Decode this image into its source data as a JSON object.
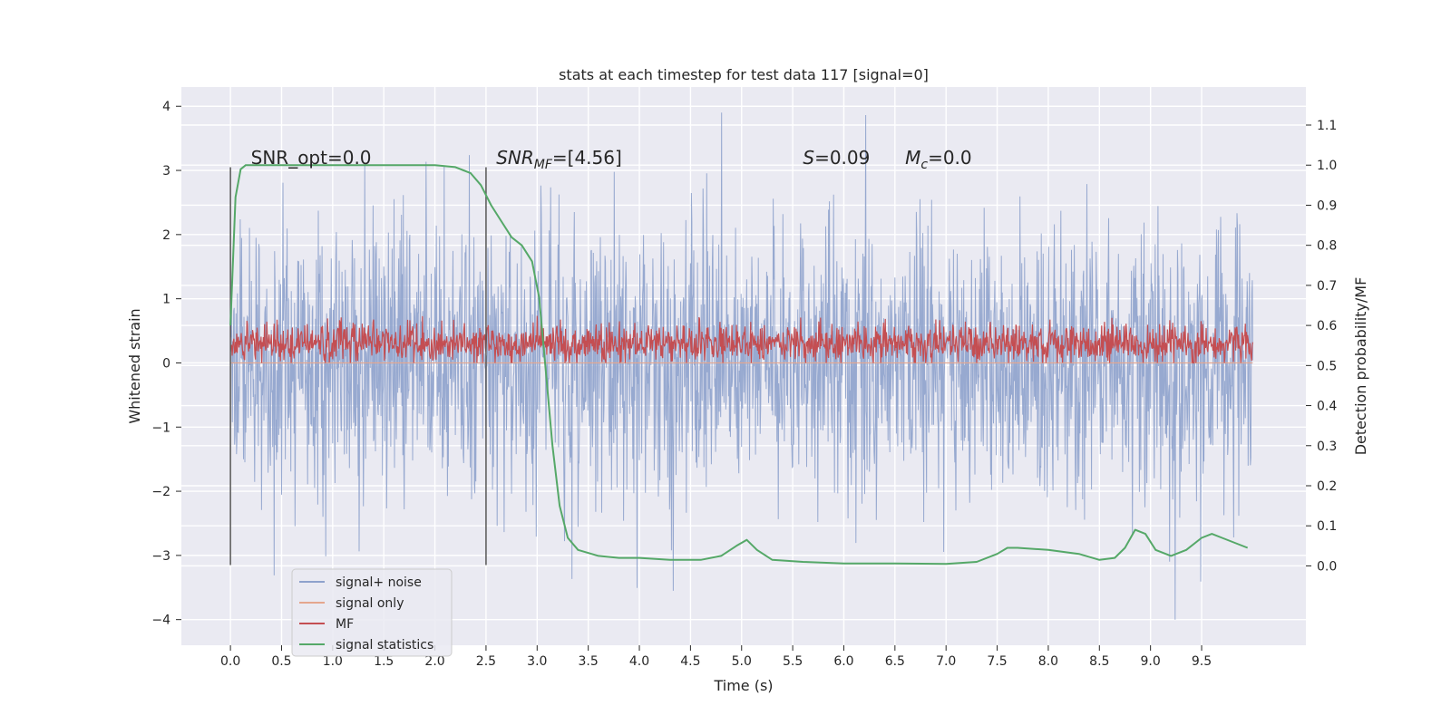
{
  "chart_data": {
    "type": "line",
    "title": "stats at each timestep for test data 117 [signal=0]",
    "xlabel": "Time (s)",
    "ylabel": "Whitened strain",
    "y2label": "Detection probability/MF",
    "xlim": [
      -0.48,
      10.52
    ],
    "ylim": [
      -4.4,
      4.3
    ],
    "y2lim": [
      -0.198,
      1.195
    ],
    "xticks": [
      0.0,
      0.5,
      1.0,
      1.5,
      2.0,
      2.5,
      3.0,
      3.5,
      4.0,
      4.5,
      5.0,
      5.5,
      6.0,
      6.5,
      7.0,
      7.5,
      8.0,
      8.5,
      9.0,
      9.5
    ],
    "yticks": [
      -4,
      -3,
      -2,
      -1,
      0,
      1,
      2,
      3,
      4
    ],
    "y2ticks": [
      0.0,
      0.1,
      0.2,
      0.3,
      0.4,
      0.5,
      0.6,
      0.7,
      0.8,
      0.9,
      1.0,
      1.1
    ],
    "grid": true,
    "legend": {
      "position": "lower-left",
      "entries": [
        {
          "name": "signal+ noise",
          "color": "#8ea2cc"
        },
        {
          "name": "signal only",
          "color": "#e5a68e"
        },
        {
          "name": "MF",
          "color": "#c44e52"
        },
        {
          "name": "signal statistics",
          "color": "#55a868"
        }
      ]
    },
    "vlines": [
      {
        "x": 0.0,
        "ymin": -3.15,
        "ymax": 3.05
      },
      {
        "x": 2.5,
        "ymin": -3.15,
        "ymax": 3.05
      }
    ],
    "annotations": [
      {
        "x": 0.2,
        "y": 3.1,
        "text": "SNR_opt=0.0",
        "math": false
      },
      {
        "x": 2.6,
        "y": 3.1,
        "base": "SNR",
        "sub": "MF",
        "rest": "=[4.56]",
        "math": true
      },
      {
        "x": 5.6,
        "y": 3.1,
        "base": "S",
        "sub": "",
        "rest": "=0.09",
        "math": true
      },
      {
        "x": 6.6,
        "y": 3.1,
        "base": "M",
        "sub": "c",
        "rest": "=0.0",
        "math": true
      }
    ],
    "series": [
      {
        "name": "signal+ noise",
        "axis": "left",
        "description": "Gaussian whitened noise from 0.0 s to 10.0 s, spread roughly -4 to 3.9",
        "x_range": [
          0.0,
          10.0
        ],
        "envelope": {
          "y_min": -4.0,
          "y_max": 3.9
        }
      },
      {
        "name": "signal only",
        "axis": "left",
        "description": "flat at zero, hidden behind noise",
        "values_constant": 0.0
      },
      {
        "name": "MF",
        "axis": "left",
        "description": "matched filter output on strain axis, between about 0.0 and 1.0",
        "x_range": [
          0.0,
          10.0
        ],
        "envelope": {
          "y_min": 0.0,
          "y_max": 1.0
        }
      },
      {
        "name": "signal statistics",
        "axis": "right",
        "x": [
          0.0,
          0.05,
          0.1,
          0.15,
          0.2,
          0.5,
          1.0,
          1.5,
          2.0,
          2.2,
          2.35,
          2.45,
          2.55,
          2.65,
          2.75,
          2.85,
          2.95,
          3.02,
          3.08,
          3.15,
          3.22,
          3.3,
          3.4,
          3.6,
          3.8,
          4.0,
          4.3,
          4.6,
          4.8,
          4.95,
          5.05,
          5.15,
          5.3,
          5.6,
          6.0,
          6.5,
          7.0,
          7.3,
          7.5,
          7.6,
          7.7,
          8.0,
          8.3,
          8.5,
          8.65,
          8.75,
          8.85,
          8.95,
          9.05,
          9.2,
          9.35,
          9.5,
          9.6,
          9.7,
          9.95
        ],
        "y": [
          0.6,
          0.92,
          0.99,
          1.0,
          1.0,
          1.0,
          1.0,
          1.0,
          1.0,
          0.995,
          0.98,
          0.95,
          0.9,
          0.86,
          0.82,
          0.8,
          0.76,
          0.67,
          0.5,
          0.3,
          0.15,
          0.07,
          0.04,
          0.025,
          0.02,
          0.02,
          0.015,
          0.015,
          0.025,
          0.05,
          0.065,
          0.04,
          0.015,
          0.01,
          0.006,
          0.006,
          0.005,
          0.01,
          0.03,
          0.045,
          0.045,
          0.04,
          0.03,
          0.015,
          0.02,
          0.045,
          0.09,
          0.08,
          0.04,
          0.025,
          0.04,
          0.07,
          0.08,
          0.07,
          0.045
        ]
      }
    ]
  }
}
